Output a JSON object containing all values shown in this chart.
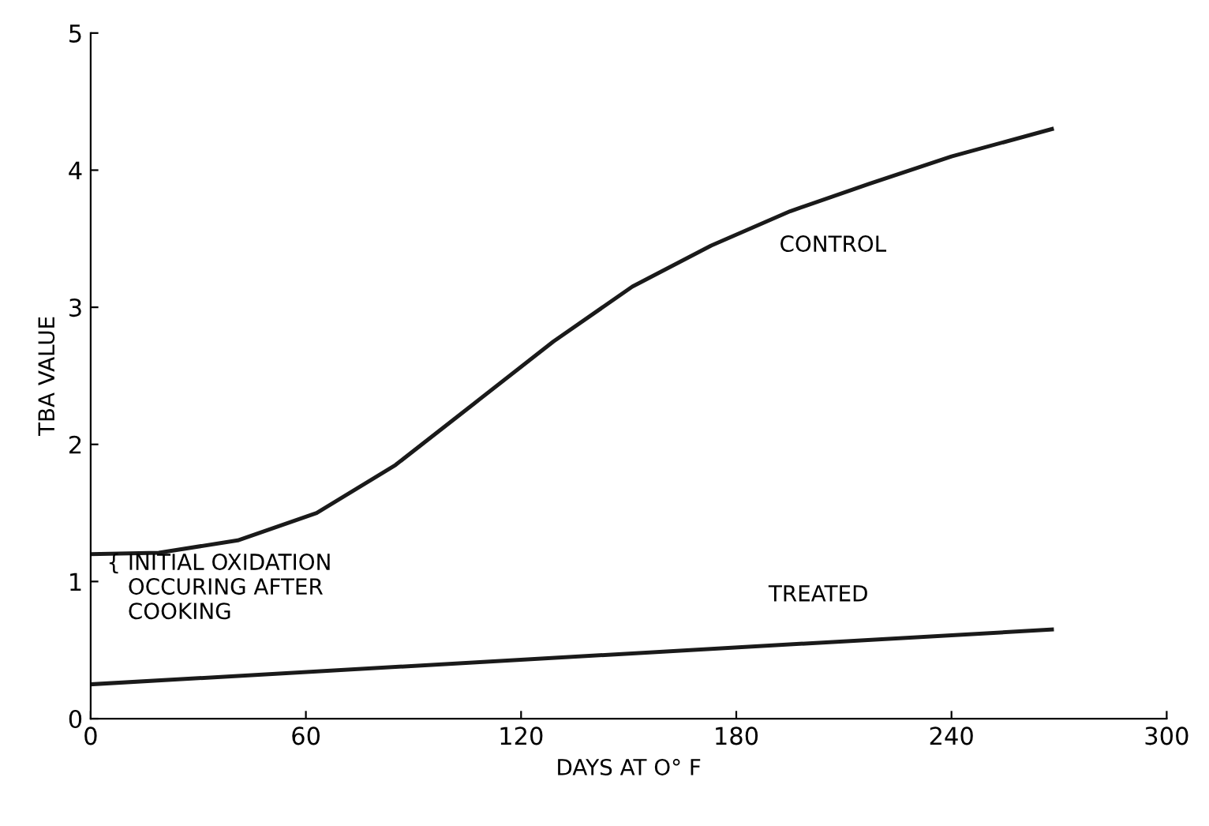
{
  "chart_data": {
    "type": "line",
    "xlabel": "DAYS AT O° F",
    "ylabel": "TBA VALUE",
    "xlim": [
      0,
      300
    ],
    "ylim": [
      0,
      5
    ],
    "xticks": [
      0,
      60,
      120,
      180,
      240,
      300
    ],
    "yticks": [
      0,
      1,
      2,
      3,
      4,
      5
    ],
    "grid": false,
    "legend": false,
    "marker": "none",
    "line_style": "solid",
    "series": [
      {
        "color": "#1a1a1a",
        "x": [
          0,
          19,
          41,
          63,
          85,
          107,
          129,
          151,
          173,
          195,
          217,
          240,
          268
        ],
        "values": [
          1.2,
          1.21,
          1.3,
          1.5,
          1.85,
          2.3,
          2.75,
          3.15,
          3.45,
          3.7,
          3.9,
          4.1,
          4.3
        ]
      },
      {
        "color": "#1a1a1a",
        "x": [
          0,
          268
        ],
        "values": [
          0.25,
          0.65
        ]
      }
    ],
    "annotations": [
      "CONTROL",
      "TREATED",
      "{ INITIAL OXIDATION\n   OCCURING AFTER\n   COOKING"
    ]
  }
}
